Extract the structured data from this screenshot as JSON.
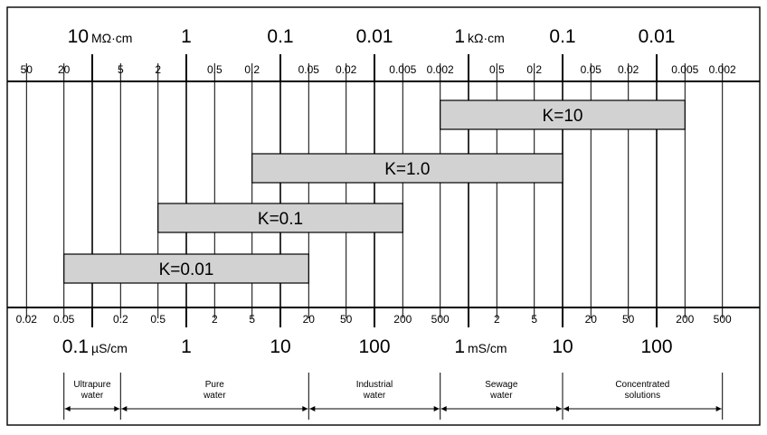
{
  "resistivity_scale": {
    "major_labels": [
      {
        "value": "10",
        "unit": "MΩ·cm"
      },
      {
        "value": "1",
        "unit": ""
      },
      {
        "value": "0.1",
        "unit": ""
      },
      {
        "value": "0.01",
        "unit": ""
      },
      {
        "value": "1",
        "unit": "kΩ·cm"
      },
      {
        "value": "0.1",
        "unit": ""
      },
      {
        "value": "0.01",
        "unit": ""
      }
    ],
    "tick_labels": [
      "50",
      "20",
      "5",
      "2",
      "0.5",
      "0.2",
      "0.05",
      "0.02",
      "0.005",
      "0.002",
      "0.5",
      "0.2",
      "0.05",
      "0.02",
      "0.005",
      "0.002"
    ]
  },
  "conductivity_scale": {
    "tick_labels": [
      "0.02",
      "0.05",
      "0.2",
      "0.5",
      "2",
      "5",
      "20",
      "50",
      "200",
      "500",
      "2",
      "5",
      "20",
      "50",
      "200",
      "500"
    ],
    "major_labels": [
      {
        "value": "0.1",
        "unit": "µS/cm"
      },
      {
        "value": "1",
        "unit": ""
      },
      {
        "value": "10",
        "unit": ""
      },
      {
        "value": "100",
        "unit": ""
      },
      {
        "value": "1",
        "unit": "mS/cm"
      },
      {
        "value": "10",
        "unit": ""
      },
      {
        "value": "100",
        "unit": ""
      }
    ]
  },
  "cell_constants": [
    {
      "label": "K=10",
      "from_uS_cm": 500,
      "to_uS_cm": 200000
    },
    {
      "label": "K=1.0",
      "from_uS_cm": 5,
      "to_uS_cm": 10000
    },
    {
      "label": "K=0.1",
      "from_uS_cm": 0.5,
      "to_uS_cm": 200
    },
    {
      "label": "K=0.01",
      "from_uS_cm": 0.05,
      "to_uS_cm": 20
    }
  ],
  "water_categories": [
    {
      "label": [
        "Ultrapure",
        "water"
      ],
      "from_uS_cm": 0.05,
      "to_uS_cm": 0.2
    },
    {
      "label": [
        "Pure",
        "water"
      ],
      "from_uS_cm": 0.2,
      "to_uS_cm": 20
    },
    {
      "label": [
        "Industrial",
        "water"
      ],
      "from_uS_cm": 20,
      "to_uS_cm": 500
    },
    {
      "label": [
        "Sewage",
        "water"
      ],
      "from_uS_cm": 500,
      "to_uS_cm": 10000
    },
    {
      "label": [
        "Concentrated",
        "solutions"
      ],
      "from_uS_cm": 10000,
      "to_uS_cm": 500000
    }
  ],
  "colors": {
    "bar_fill": "#d2d2d2",
    "line": "#000000",
    "background": "#ffffff"
  }
}
